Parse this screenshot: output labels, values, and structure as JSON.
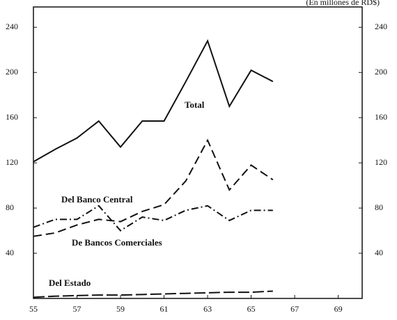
{
  "chart_data": {
    "type": "line",
    "subtitle": "(En millones de RD$)",
    "x": [
      55,
      56,
      57,
      58,
      59,
      60,
      61,
      62,
      63,
      64,
      65,
      66
    ],
    "series": [
      {
        "name": "Total",
        "color": "#111111",
        "dash": "solid",
        "values": [
          121,
          132,
          142,
          157,
          134,
          157,
          157,
          192,
          228,
          170,
          202,
          192
        ]
      },
      {
        "name": "Del Banco Central",
        "color": "#111111",
        "dash": "dashed",
        "values": [
          55,
          58,
          65,
          70,
          68,
          77,
          83,
          104,
          140,
          96,
          118,
          105
        ]
      },
      {
        "name": "De Bancos Comerciales",
        "color": "#111111",
        "dash": "dashdot",
        "values": [
          63,
          70,
          70,
          82,
          60,
          72,
          69,
          78,
          82,
          69,
          78,
          78
        ]
      },
      {
        "name": "Del Estado",
        "color": "#111111",
        "dash": "longdash",
        "values": [
          1,
          2,
          2.5,
          3,
          3,
          3.5,
          4,
          4.5,
          5,
          5.5,
          5.5,
          6.5
        ]
      }
    ],
    "xlim": [
      55,
      70.1
    ],
    "xticks": [
      55,
      57,
      59,
      61,
      63,
      65,
      67,
      69
    ],
    "ylim": [
      0,
      258
    ],
    "yticks": [
      40,
      80,
      120,
      160,
      200,
      240
    ],
    "y2lim": [
      0,
      258
    ],
    "y2ticks": [
      40,
      80,
      120,
      160,
      200,
      240
    ]
  }
}
